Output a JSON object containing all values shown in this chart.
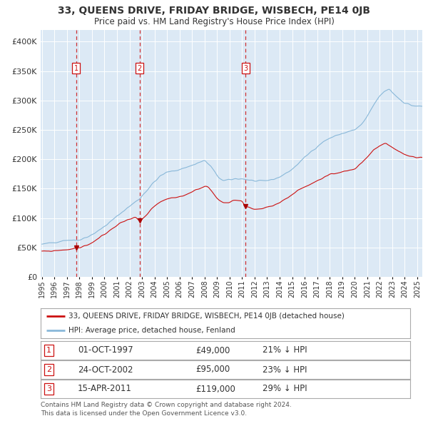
{
  "title": "33, QUEENS DRIVE, FRIDAY BRIDGE, WISBECH, PE14 0JB",
  "subtitle": "Price paid vs. HM Land Registry's House Price Index (HPI)",
  "bg_color": "#dce9f5",
  "hpi_color": "#89b8d9",
  "price_color": "#cc1111",
  "marker_color": "#aa0000",
  "vline_color": "#cc1111",
  "grid_color": "#ffffff",
  "purchases": [
    {
      "date_num": 1997.75,
      "price": 49000,
      "label": "1"
    },
    {
      "date_num": 2002.81,
      "price": 95000,
      "label": "2"
    },
    {
      "date_num": 2011.28,
      "price": 119000,
      "label": "3"
    }
  ],
  "legend_entries": [
    "33, QUEENS DRIVE, FRIDAY BRIDGE, WISBECH, PE14 0JB (detached house)",
    "HPI: Average price, detached house, Fenland"
  ],
  "table_rows": [
    {
      "num": "1",
      "date": "01-OCT-1997",
      "price": "£49,000",
      "pct": "21% ↓ HPI"
    },
    {
      "num": "2",
      "date": "24-OCT-2002",
      "price": "£95,000",
      "pct": "23% ↓ HPI"
    },
    {
      "num": "3",
      "date": "15-APR-2011",
      "price": "£119,000",
      "pct": "29% ↓ HPI"
    }
  ],
  "footer": "Contains HM Land Registry data © Crown copyright and database right 2024.\nThis data is licensed under the Open Government Licence v3.0.",
  "ylim": [
    0,
    420000
  ],
  "yticks": [
    0,
    50000,
    100000,
    150000,
    200000,
    250000,
    300000,
    350000,
    400000
  ],
  "ytick_labels": [
    "£0",
    "£50K",
    "£100K",
    "£150K",
    "£200K",
    "£250K",
    "£300K",
    "£350K",
    "£400K"
  ],
  "xlim_start": 1994.9,
  "xlim_end": 2025.4,
  "hpi_anchors_x": [
    1995.0,
    1995.5,
    1996.0,
    1996.5,
    1997.0,
    1997.5,
    1997.75,
    1998.0,
    1998.5,
    1999.0,
    1999.5,
    2000.0,
    2000.5,
    2001.0,
    2001.5,
    2002.0,
    2002.5,
    2002.81,
    2003.0,
    2003.5,
    2004.0,
    2004.5,
    2005.0,
    2005.5,
    2006.0,
    2006.5,
    2007.0,
    2007.5,
    2008.0,
    2008.5,
    2009.0,
    2009.5,
    2010.0,
    2010.5,
    2011.0,
    2011.5,
    2012.0,
    2012.5,
    2013.0,
    2013.5,
    2014.0,
    2014.5,
    2015.0,
    2015.5,
    2016.0,
    2016.5,
    2017.0,
    2017.5,
    2018.0,
    2018.5,
    2019.0,
    2019.5,
    2020.0,
    2020.5,
    2021.0,
    2021.5,
    2022.0,
    2022.5,
    2022.75,
    2023.0,
    2023.5,
    2024.0,
    2024.5,
    2025.0
  ],
  "hpi_anchors_y": [
    55000,
    57000,
    59000,
    61000,
    63000,
    62500,
    62000,
    63500,
    67000,
    72000,
    78000,
    86000,
    94000,
    103000,
    112000,
    120000,
    128000,
    133000,
    138000,
    150000,
    162000,
    172000,
    178000,
    180000,
    183000,
    186000,
    190000,
    194000,
    198000,
    188000,
    172000,
    163000,
    165000,
    167000,
    167000,
    165000,
    163000,
    162000,
    164000,
    166000,
    170000,
    176000,
    183000,
    193000,
    203000,
    213000,
    222000,
    230000,
    236000,
    240000,
    244000,
    247000,
    250000,
    258000,
    272000,
    292000,
    308000,
    317000,
    320000,
    314000,
    304000,
    296000,
    292000,
    290000
  ],
  "price_anchors_x": [
    1995.0,
    1995.5,
    1996.0,
    1996.5,
    1997.0,
    1997.5,
    1997.75,
    1998.0,
    1998.5,
    1999.0,
    1999.5,
    2000.0,
    2000.5,
    2001.0,
    2001.5,
    2002.0,
    2002.5,
    2002.81,
    2003.0,
    2003.5,
    2004.0,
    2004.5,
    2005.0,
    2005.5,
    2006.0,
    2006.5,
    2007.0,
    2007.5,
    2008.0,
    2008.3,
    2008.7,
    2009.0,
    2009.5,
    2010.0,
    2010.5,
    2011.0,
    2011.28,
    2011.5,
    2012.0,
    2012.5,
    2013.0,
    2013.5,
    2014.0,
    2014.5,
    2015.0,
    2015.5,
    2016.0,
    2016.5,
    2017.0,
    2017.5,
    2018.0,
    2018.5,
    2019.0,
    2019.5,
    2020.0,
    2020.5,
    2021.0,
    2021.5,
    2022.0,
    2022.5,
    2023.0,
    2023.5,
    2024.0,
    2024.5,
    2025.0
  ],
  "price_anchors_y": [
    43000,
    43500,
    44500,
    45500,
    46500,
    47500,
    49000,
    50000,
    53000,
    58000,
    65000,
    72000,
    80000,
    88000,
    94000,
    99000,
    101000,
    95000,
    97000,
    108000,
    120000,
    128000,
    132000,
    134000,
    136000,
    140000,
    145000,
    150000,
    154000,
    153000,
    142000,
    133000,
    126000,
    128000,
    131000,
    130000,
    119000,
    118000,
    115000,
    116000,
    118000,
    121000,
    126000,
    133000,
    140000,
    148000,
    153000,
    158000,
    163000,
    168000,
    173000,
    176000,
    179000,
    181000,
    184000,
    193000,
    204000,
    216000,
    223000,
    227000,
    220000,
    213000,
    208000,
    205000,
    203000
  ]
}
